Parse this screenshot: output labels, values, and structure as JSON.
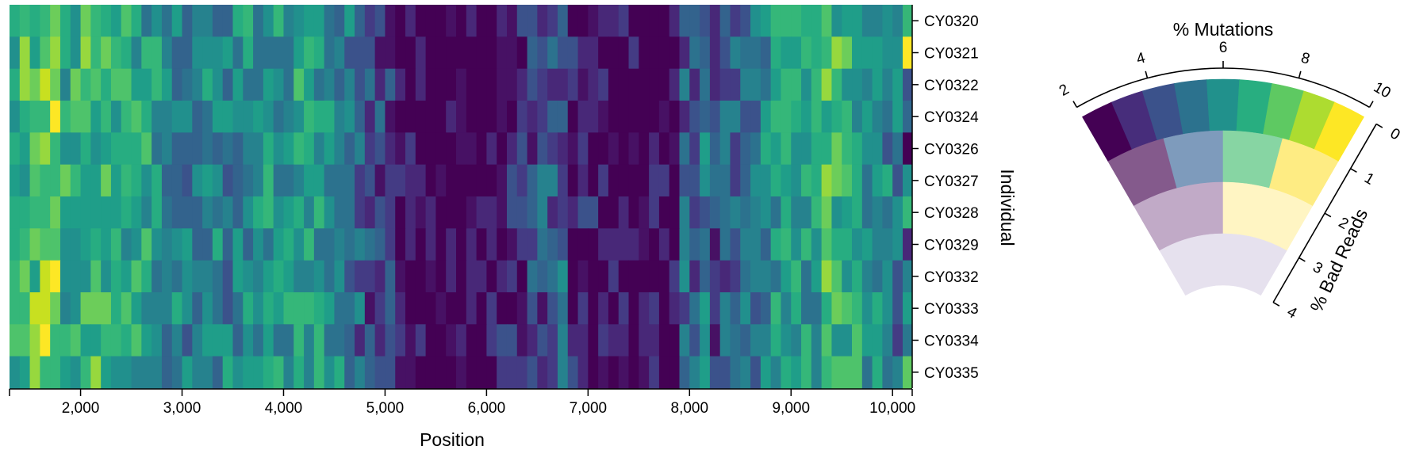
{
  "heatmap": {
    "xlabel": "Position",
    "ylabel": "Individual",
    "xlim": [
      1300,
      10100
    ],
    "x_ticks": [
      {
        "value": 2000,
        "label": "2,000"
      },
      {
        "value": 3000,
        "label": "3,000"
      },
      {
        "value": 4000,
        "label": "4,000"
      },
      {
        "value": 5000,
        "label": "5,000"
      },
      {
        "value": 6000,
        "label": "6,000"
      },
      {
        "value": 7000,
        "label": "7,000"
      },
      {
        "value": 8000,
        "label": "8,000"
      },
      {
        "value": 9000,
        "label": "9,000"
      },
      {
        "value": 10000,
        "label": "10,000"
      }
    ],
    "individuals": [
      "CY0320",
      "CY0321",
      "CY0322",
      "CY0324",
      "CY0326",
      "CY0327",
      "CY0328",
      "CY0329",
      "CY0332",
      "CY0333",
      "CY0334",
      "CY0335"
    ],
    "column_colors": [
      "#36b677",
      "#fde725",
      "#3b528b",
      "#31688e",
      "#440154",
      "#21908d",
      "#35b779",
      "#482878",
      "#26828e",
      "#1f9e89",
      "#2a788e",
      "#5ec962"
    ]
  },
  "legend": {
    "top_title": "% Mutations",
    "side_title": "% Bad Reads",
    "mutation_ticks": [
      {
        "value": 2,
        "label": "2"
      },
      {
        "value": 4,
        "label": "4"
      },
      {
        "value": 6,
        "label": "6"
      },
      {
        "value": 8,
        "label": "8"
      },
      {
        "value": 10,
        "label": "10"
      }
    ],
    "mutation_range": [
      2,
      10
    ],
    "bad_read_ticks": [
      {
        "value": 0,
        "label": "0"
      },
      {
        "value": 1,
        "label": "1"
      },
      {
        "value": 2,
        "label": "2"
      },
      {
        "value": 3,
        "label": "3"
      },
      {
        "value": 4,
        "label": "4"
      }
    ],
    "bad_read_range": [
      0,
      4
    ],
    "palette": [
      [
        "#440154",
        "#472d7b",
        "#3b528b",
        "#2c728e",
        "#21918c",
        "#28ae80",
        "#5ec962",
        "#addc30",
        "#fde725"
      ],
      [
        "#845a8c",
        "#7e9bbc",
        "#87d5a3",
        "#feec83"
      ],
      [
        "#c1aac7",
        "#fff5c3"
      ],
      [
        "#e6e1ee"
      ]
    ]
  }
}
